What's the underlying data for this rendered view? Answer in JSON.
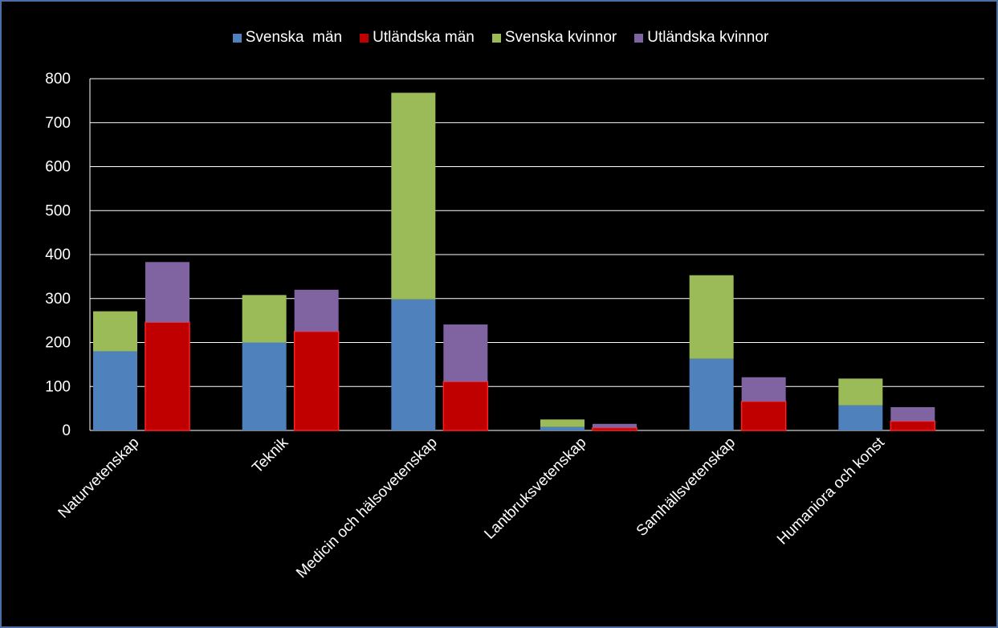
{
  "chart_data": {
    "type": "bar",
    "stacked_groups": true,
    "categories": [
      "Naturvetenskap",
      "Teknik",
      "Medicin och hälsovetenskap",
      "Lantbruksvetenskap",
      "Samhällsvetenskap",
      "Humaniora och konst"
    ],
    "series": [
      {
        "name": "Svenska  män",
        "stack": "svenska",
        "color": "#4f81bd",
        "values": [
          180,
          200,
          298,
          8,
          163,
          57
        ]
      },
      {
        "name": "Utländska män",
        "stack": "utlandska",
        "color": "#c00000",
        "values": [
          246,
          225,
          111,
          6,
          66,
          21
        ]
      },
      {
        "name": "Svenska kvinnor",
        "stack": "svenska",
        "color": "#9bbb59",
        "values": [
          91,
          108,
          470,
          17,
          190,
          61
        ]
      },
      {
        "name": "Utländska kvinnor",
        "stack": "utlandska",
        "color": "#8064a2",
        "values": [
          137,
          95,
          130,
          9,
          55,
          32
        ]
      }
    ],
    "yticks": [
      0,
      100,
      200,
      300,
      400,
      500,
      600,
      700,
      800
    ],
    "ylim": [
      0,
      800
    ],
    "grid": true,
    "legend_position": "top",
    "background": "#000000",
    "text_color": "#ffffff"
  }
}
